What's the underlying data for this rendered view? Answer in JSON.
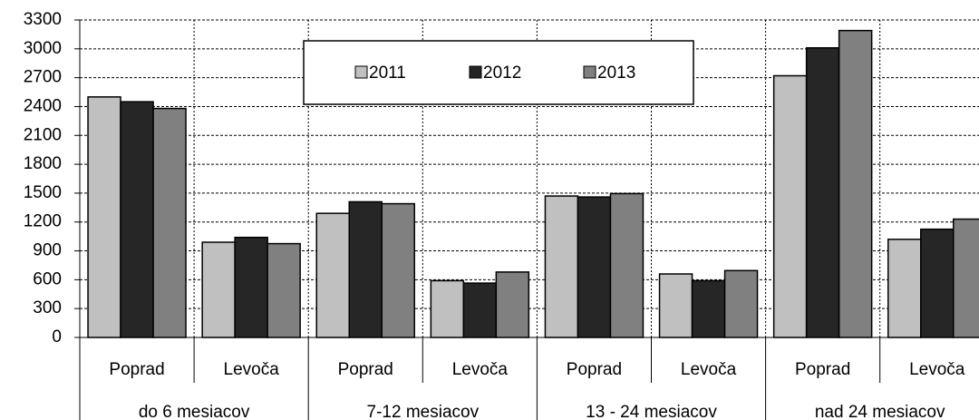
{
  "chart_data": {
    "type": "bar",
    "groups": [
      "do 6 mesiacov",
      "7-12 mesiacov",
      "13 - 24 mesiacov",
      "nad 24 mesiacov"
    ],
    "categories": [
      "Poprad",
      "Levoča",
      "Poprad",
      "Levoča",
      "Poprad",
      "Levoča",
      "Poprad",
      "Levoča"
    ],
    "series": [
      {
        "name": "2011",
        "color": "#c0c0c0",
        "values": [
          2500,
          990,
          1290,
          590,
          1470,
          660,
          2720,
          1020
        ]
      },
      {
        "name": "2012",
        "color": "#262626",
        "values": [
          2450,
          1040,
          1410,
          565,
          1460,
          590,
          3010,
          1125
        ]
      },
      {
        "name": "2013",
        "color": "#808080",
        "values": [
          2380,
          975,
          1390,
          680,
          1495,
          695,
          3190,
          1230
        ]
      }
    ],
    "ylim": [
      0,
      3300
    ],
    "yticks": [
      0,
      300,
      600,
      900,
      1200,
      1500,
      1800,
      2100,
      2400,
      2700,
      3000,
      3300
    ],
    "grid": true
  }
}
